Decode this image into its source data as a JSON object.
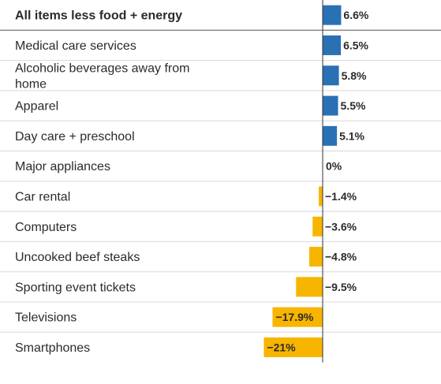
{
  "chart_data": {
    "type": "bar",
    "orientation": "horizontal",
    "categories": [
      "All items less food + energy",
      "Medical care services",
      "Alcoholic beverages away from home",
      "Apparel",
      "Day care + preschool",
      "Major appliances",
      "Car rental",
      "Computers",
      "Uncooked beef steaks",
      "Sporting event tickets",
      "Televisions",
      "Smartphones"
    ],
    "values": [
      6.6,
      6.5,
      5.8,
      5.5,
      5.1,
      0,
      -1.4,
      -3.6,
      -4.8,
      -9.5,
      -17.9,
      -21
    ],
    "value_labels": [
      "6.6%",
      "6.5%",
      "5.8%",
      "5.5%",
      "5.1%",
      "0%",
      "−1.4%",
      "−3.6%",
      "−4.8%",
      "−9.5%",
      "−17.9%",
      "−21%"
    ],
    "bold_category_index": 0,
    "colors": {
      "positive": "#2a70b5",
      "negative": "#f7b500",
      "divider": "#d9d9d9",
      "header_divider": "#555555",
      "axis": "#333333"
    }
  }
}
